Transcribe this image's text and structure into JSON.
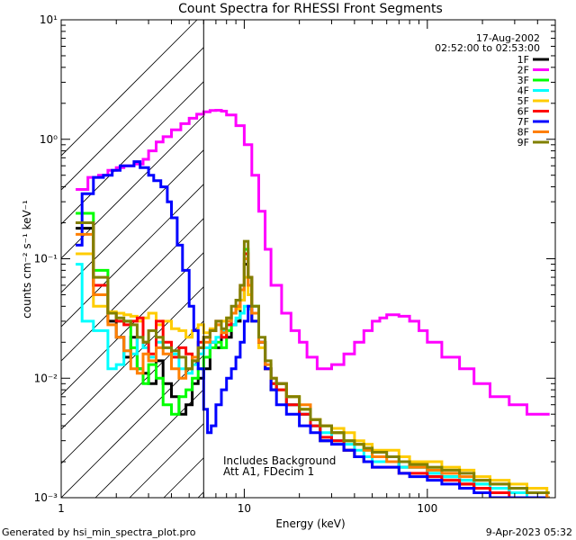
{
  "chart_data": {
    "type": "line",
    "title": "Count Spectra for RHESSI Front Segments",
    "xlabel": "Energy (keV)",
    "ylabel": "counts cm⁻² s⁻¹ keV⁻¹",
    "xscale": "log",
    "yscale": "log",
    "xlim": [
      1,
      500
    ],
    "ylim": [
      0.001,
      10
    ],
    "x_ticks": [
      {
        "value": 1,
        "label": "1"
      },
      {
        "value": 10,
        "label": "10"
      },
      {
        "value": 100,
        "label": "100"
      }
    ],
    "y_ticks": [
      {
        "value": 0.001,
        "label": "10⁻³"
      },
      {
        "value": 0.01,
        "label": "10⁻²"
      },
      {
        "value": 0.1,
        "label": "10⁻¹"
      },
      {
        "value": 1,
        "label": "10⁰"
      },
      {
        "value": 10,
        "label": "10¹"
      }
    ],
    "date": "17-Aug-2002",
    "time_range": "02:52:00 to 02:53:00",
    "annotations": [
      "Includes Background",
      "Att A1, FDecim 1"
    ],
    "excluded_energy_max": 6,
    "legend_position": "top-right",
    "series": [
      {
        "name": "1F",
        "color": "#000000",
        "x": [
          1.2,
          1.5,
          1.8,
          2,
          2.2,
          2.4,
          2.6,
          2.8,
          3,
          3.3,
          3.6,
          4,
          4.4,
          4.8,
          5.2,
          5.6,
          6,
          6.5,
          7,
          7.5,
          8,
          8.5,
          9,
          9.5,
          10,
          10.5,
          11,
          12,
          13,
          14,
          15,
          17,
          20,
          23,
          26,
          30,
          35,
          40,
          45,
          50,
          60,
          70,
          80,
          100,
          120,
          150,
          180,
          220,
          280,
          350,
          450
        ],
        "y": [
          0.18,
          0.06,
          0.03,
          0.022,
          0.015,
          0.022,
          0.012,
          0.011,
          0.009,
          0.014,
          0.009,
          0.007,
          0.005,
          0.006,
          0.009,
          0.01,
          0.012,
          0.02,
          0.018,
          0.025,
          0.022,
          0.028,
          0.03,
          0.045,
          0.09,
          0.06,
          0.03,
          0.02,
          0.012,
          0.008,
          0.009,
          0.006,
          0.005,
          0.004,
          0.003,
          0.003,
          0.0025,
          0.0022,
          0.002,
          0.002,
          0.002,
          0.0018,
          0.0018,
          0.0015,
          0.0015,
          0.0013,
          0.0012,
          0.0012,
          0.0011,
          0.001,
          0.001
        ]
      },
      {
        "name": "2F",
        "color": "#ff00ff",
        "x": [
          1.2,
          1.4,
          1.6,
          1.8,
          2,
          2.2,
          2.5,
          2.8,
          3,
          3.3,
          3.6,
          4,
          4.5,
          5,
          5.5,
          6,
          6.5,
          7,
          7.5,
          8,
          9,
          10,
          11,
          12,
          13,
          14,
          16,
          18,
          20,
          22,
          25,
          30,
          35,
          40,
          45,
          50,
          55,
          60,
          70,
          80,
          90,
          100,
          120,
          150,
          180,
          220,
          280,
          350,
          450
        ],
        "y": [
          0.38,
          0.48,
          0.5,
          0.55,
          0.58,
          0.6,
          0.62,
          0.68,
          0.8,
          0.95,
          1.05,
          1.2,
          1.35,
          1.5,
          1.62,
          1.7,
          1.74,
          1.75,
          1.72,
          1.6,
          1.3,
          0.9,
          0.5,
          0.25,
          0.12,
          0.06,
          0.035,
          0.025,
          0.02,
          0.015,
          0.012,
          0.013,
          0.016,
          0.02,
          0.025,
          0.03,
          0.032,
          0.034,
          0.033,
          0.03,
          0.025,
          0.02,
          0.015,
          0.012,
          0.009,
          0.007,
          0.006,
          0.005,
          0.005
        ]
      },
      {
        "name": "3F",
        "color": "#00ff00",
        "x": [
          1.2,
          1.5,
          1.8,
          2,
          2.2,
          2.4,
          2.6,
          2.8,
          3,
          3.3,
          3.6,
          4,
          4.4,
          4.8,
          5.2,
          5.6,
          6,
          6.5,
          7,
          7.5,
          8,
          8.5,
          9,
          9.5,
          10,
          10.5,
          11,
          12,
          13,
          14,
          15,
          17,
          20,
          23,
          26,
          30,
          35,
          40,
          45,
          50,
          60,
          70,
          80,
          100,
          120,
          150,
          180,
          220,
          280,
          350,
          450
        ],
        "y": [
          0.24,
          0.08,
          0.035,
          0.03,
          0.03,
          0.018,
          0.012,
          0.009,
          0.013,
          0.01,
          0.006,
          0.005,
          0.007,
          0.008,
          0.01,
          0.012,
          0.015,
          0.018,
          0.02,
          0.018,
          0.025,
          0.035,
          0.04,
          0.055,
          0.12,
          0.07,
          0.04,
          0.02,
          0.012,
          0.009,
          0.008,
          0.007,
          0.0055,
          0.0045,
          0.004,
          0.0035,
          0.003,
          0.0028,
          0.0025,
          0.0022,
          0.0022,
          0.002,
          0.0018,
          0.0017,
          0.0015,
          0.0014,
          0.0013,
          0.0012,
          0.0011,
          0.0011,
          0.001
        ]
      },
      {
        "name": "4F",
        "color": "#00ffff",
        "x": [
          1.2,
          1.3,
          1.5,
          1.8,
          2,
          2.2,
          2.4,
          2.6,
          2.8,
          3,
          3.3,
          3.6,
          4,
          4.4,
          4.8,
          5.2,
          5.6,
          6,
          6.5,
          7,
          7.5,
          8,
          8.5,
          9,
          9.5,
          10,
          10.5,
          11,
          12,
          13,
          14,
          15,
          17,
          20,
          23,
          26,
          30,
          35,
          40,
          45,
          50,
          60,
          70,
          80,
          100,
          120,
          150,
          180,
          220,
          280,
          350,
          450
        ],
        "y": [
          0.09,
          0.03,
          0.025,
          0.012,
          0.013,
          0.017,
          0.016,
          0.022,
          0.018,
          0.015,
          0.02,
          0.018,
          0.016,
          0.012,
          0.011,
          0.013,
          0.016,
          0.018,
          0.02,
          0.022,
          0.025,
          0.03,
          0.028,
          0.032,
          0.035,
          0.04,
          0.038,
          0.035,
          0.02,
          0.012,
          0.009,
          0.008,
          0.006,
          0.005,
          0.004,
          0.0035,
          0.003,
          0.0028,
          0.0025,
          0.0022,
          0.002,
          0.002,
          0.0018,
          0.0018,
          0.0016,
          0.0015,
          0.0014,
          0.0013,
          0.0012,
          0.0011,
          0.001,
          0.001
        ]
      },
      {
        "name": "5F",
        "color": "#ffcc00",
        "x": [
          1.2,
          1.5,
          1.8,
          2,
          2.2,
          2.4,
          2.6,
          2.8,
          3,
          3.3,
          3.6,
          4,
          4.4,
          4.8,
          5.2,
          5.6,
          6,
          6.5,
          7,
          7.5,
          8,
          8.5,
          9,
          9.5,
          10,
          10.5,
          11,
          12,
          13,
          14,
          15,
          17,
          20,
          23,
          26,
          30,
          35,
          40,
          45,
          50,
          60,
          70,
          80,
          100,
          120,
          150,
          180,
          220,
          280,
          350,
          450
        ],
        "y": [
          0.11,
          0.04,
          0.036,
          0.035,
          0.034,
          0.033,
          0.03,
          0.032,
          0.035,
          0.028,
          0.03,
          0.026,
          0.025,
          0.022,
          0.025,
          0.028,
          0.024,
          0.026,
          0.028,
          0.03,
          0.032,
          0.035,
          0.038,
          0.045,
          0.07,
          0.05,
          0.03,
          0.018,
          0.012,
          0.009,
          0.008,
          0.007,
          0.0055,
          0.0045,
          0.004,
          0.0038,
          0.0035,
          0.003,
          0.0028,
          0.0025,
          0.0025,
          0.0022,
          0.002,
          0.002,
          0.0018,
          0.0017,
          0.0015,
          0.0014,
          0.0013,
          0.0012,
          0.0011
        ]
      },
      {
        "name": "6F",
        "color": "#ff0000",
        "x": [
          1.2,
          1.5,
          1.8,
          2,
          2.2,
          2.4,
          2.6,
          2.8,
          3,
          3.3,
          3.6,
          4,
          4.4,
          4.8,
          5.2,
          5.6,
          6,
          6.5,
          7,
          7.5,
          8,
          8.5,
          9,
          9.5,
          10,
          10.5,
          11,
          12,
          13,
          14,
          15,
          17,
          20,
          23,
          26,
          30,
          35,
          40,
          45,
          50,
          60,
          70,
          80,
          100,
          120,
          150,
          180,
          220,
          280,
          350,
          450
        ],
        "y": [
          0.2,
          0.06,
          0.035,
          0.03,
          0.028,
          0.03,
          0.032,
          0.02,
          0.016,
          0.03,
          0.02,
          0.015,
          0.018,
          0.016,
          0.014,
          0.02,
          0.022,
          0.025,
          0.03,
          0.022,
          0.028,
          0.035,
          0.04,
          0.06,
          0.11,
          0.07,
          0.035,
          0.02,
          0.012,
          0.009,
          0.008,
          0.006,
          0.005,
          0.004,
          0.0032,
          0.003,
          0.0025,
          0.0022,
          0.002,
          0.0018,
          0.0018,
          0.0016,
          0.0016,
          0.0015,
          0.0014,
          0.0013,
          0.0012,
          0.0011,
          0.001,
          0.001,
          0.001
        ]
      },
      {
        "name": "7F",
        "color": "#0000ff",
        "x": [
          1.2,
          1.3,
          1.5,
          1.7,
          1.9,
          2.1,
          2.3,
          2.5,
          2.7,
          3,
          3.2,
          3.5,
          3.8,
          4,
          4.3,
          4.6,
          5,
          5.3,
          5.6,
          6,
          6.3,
          6.6,
          7,
          7.5,
          8,
          8.5,
          9,
          9.5,
          10,
          10.5,
          11,
          12,
          13,
          14,
          15,
          17,
          20,
          23,
          26,
          30,
          35,
          40,
          45,
          50,
          60,
          70,
          80,
          100,
          120,
          150,
          180,
          220,
          280,
          350,
          450
        ],
        "y": [
          0.13,
          0.35,
          0.48,
          0.5,
          0.55,
          0.6,
          0.6,
          0.65,
          0.58,
          0.5,
          0.45,
          0.4,
          0.3,
          0.22,
          0.13,
          0.08,
          0.04,
          0.025,
          0.012,
          0.0055,
          0.0035,
          0.004,
          0.006,
          0.008,
          0.01,
          0.012,
          0.015,
          0.02,
          0.03,
          0.04,
          0.03,
          0.02,
          0.012,
          0.008,
          0.006,
          0.005,
          0.004,
          0.0035,
          0.003,
          0.0028,
          0.0025,
          0.0022,
          0.002,
          0.0018,
          0.0018,
          0.0016,
          0.0015,
          0.0014,
          0.0013,
          0.0012,
          0.0011,
          0.001,
          0.001,
          0.001,
          0.001
        ]
      },
      {
        "name": "8F",
        "color": "#ff7f00",
        "x": [
          1.2,
          1.5,
          1.8,
          2,
          2.2,
          2.4,
          2.6,
          2.8,
          3,
          3.3,
          3.6,
          4,
          4.4,
          4.8,
          5.2,
          5.6,
          6,
          6.5,
          7,
          7.5,
          8,
          8.5,
          9,
          9.5,
          10,
          10.5,
          11,
          12,
          13,
          14,
          15,
          17,
          20,
          23,
          26,
          30,
          35,
          40,
          45,
          50,
          60,
          70,
          80,
          100,
          120,
          150,
          180,
          220,
          280,
          350,
          450
        ],
        "y": [
          0.16,
          0.05,
          0.028,
          0.022,
          0.017,
          0.012,
          0.011,
          0.016,
          0.014,
          0.018,
          0.016,
          0.012,
          0.01,
          0.012,
          0.015,
          0.018,
          0.02,
          0.025,
          0.028,
          0.024,
          0.03,
          0.035,
          0.04,
          0.055,
          0.1,
          0.06,
          0.035,
          0.02,
          0.013,
          0.01,
          0.009,
          0.007,
          0.006,
          0.0045,
          0.004,
          0.0035,
          0.003,
          0.0028,
          0.0025,
          0.0022,
          0.002,
          0.002,
          0.0018,
          0.0017,
          0.0016,
          0.0015,
          0.0014,
          0.0013,
          0.0012,
          0.0011,
          0.001
        ]
      },
      {
        "name": "9F",
        "color": "#808000",
        "x": [
          1.2,
          1.5,
          1.8,
          2,
          2.2,
          2.4,
          2.6,
          2.8,
          3,
          3.3,
          3.6,
          4,
          4.4,
          4.8,
          5.2,
          5.6,
          6,
          6.5,
          7,
          7.5,
          8,
          8.5,
          9,
          9.5,
          10,
          10.5,
          11,
          12,
          13,
          14,
          15,
          17,
          20,
          23,
          26,
          30,
          35,
          40,
          45,
          50,
          60,
          70,
          80,
          100,
          120,
          150,
          180,
          220,
          280,
          350,
          450
        ],
        "y": [
          0.2,
          0.07,
          0.035,
          0.032,
          0.03,
          0.028,
          0.022,
          0.02,
          0.025,
          0.022,
          0.018,
          0.017,
          0.015,
          0.012,
          0.014,
          0.018,
          0.022,
          0.025,
          0.03,
          0.026,
          0.032,
          0.04,
          0.045,
          0.06,
          0.14,
          0.07,
          0.04,
          0.022,
          0.014,
          0.01,
          0.009,
          0.007,
          0.0055,
          0.0045,
          0.004,
          0.0035,
          0.003,
          0.0028,
          0.0026,
          0.0024,
          0.0022,
          0.002,
          0.0019,
          0.0018,
          0.0017,
          0.0016,
          0.0014,
          0.0013,
          0.0012,
          0.0011,
          0.0011
        ]
      }
    ]
  },
  "footer": {
    "left": "Generated by hsi_min_spectra_plot.pro",
    "right": "9-Apr-2023 05:32"
  }
}
